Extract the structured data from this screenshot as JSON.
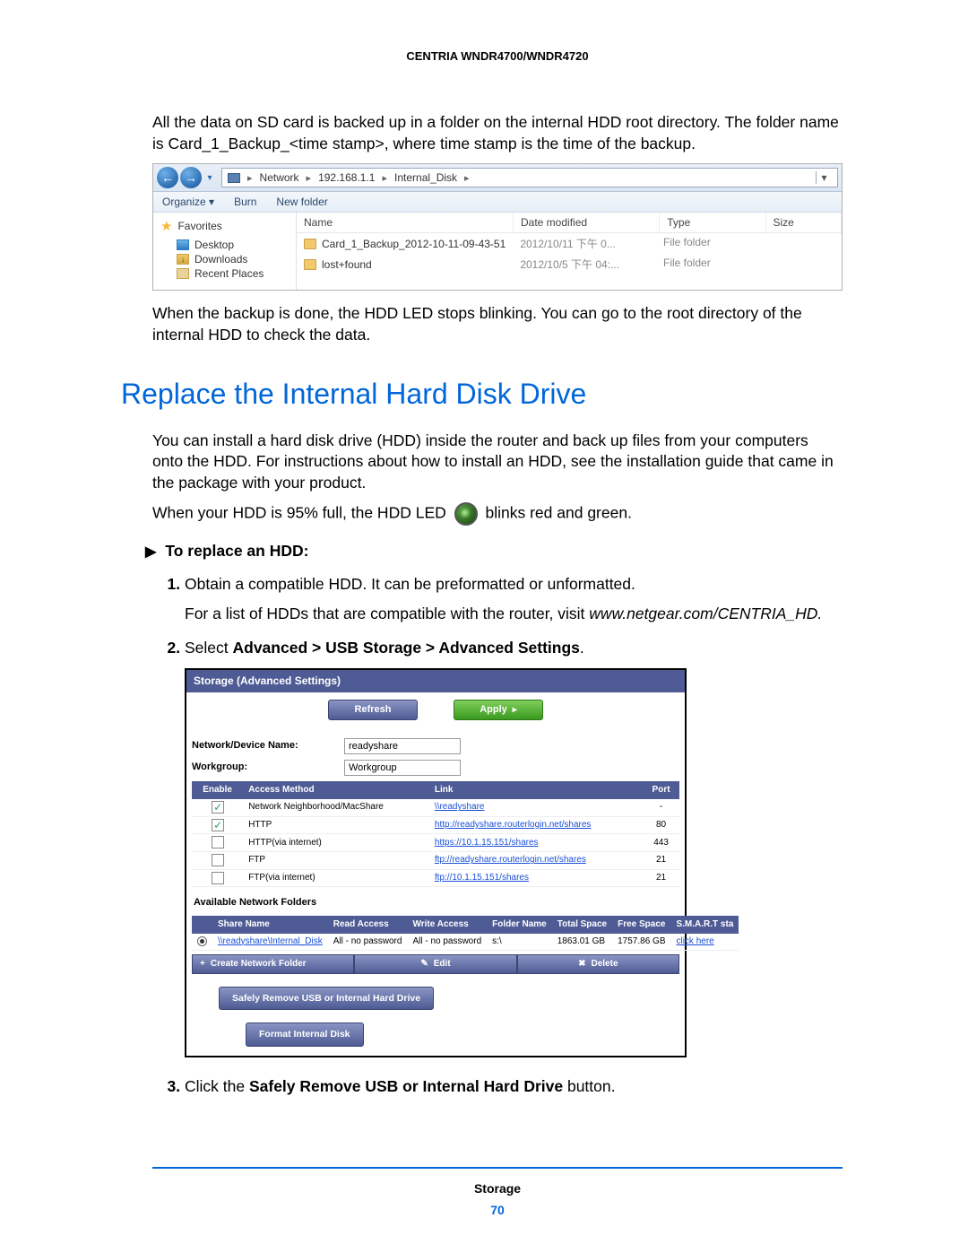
{
  "header": {
    "product": "CENTRIA WNDR4700/WNDR4720"
  },
  "intro": {
    "p1": "All the data on SD card is backed up in a folder on the internal HDD root directory. The folder name is Card_1_Backup_<time stamp>, where time stamp is the time of the backup.",
    "p2": "When the backup is done, the HDD LED stops blinking. You can go to the root directory of the internal HDD to check the data."
  },
  "explorer": {
    "toolbar": {
      "organize": "Organize ▾",
      "burn": "Burn",
      "newfolder": "New folder"
    },
    "breadcrumbs": [
      "Network",
      "192.168.1.1",
      "Internal_Disk"
    ],
    "sidebar": {
      "favorites": "Favorites",
      "items": [
        "Desktop",
        "Downloads",
        "Recent Places"
      ]
    },
    "columns": {
      "name": "Name",
      "date": "Date modified",
      "type": "Type",
      "size": "Size"
    },
    "rows": [
      {
        "name": "Card_1_Backup_2012-10-11-09-43-51",
        "date": "2012/10/11 下午 0...",
        "type": "File folder",
        "size": ""
      },
      {
        "name": "lost+found",
        "date": "2012/10/5 下午 04:...",
        "type": "File folder",
        "size": ""
      }
    ]
  },
  "section": {
    "title": "Replace the Internal Hard Disk Drive",
    "desc": "You can install a hard disk drive (HDD) inside the router and back up files from your computers onto the HDD. For instructions about how to install an HDD, see the installation guide that came in the package with your product.",
    "led_before": "When your HDD is 95% full, the HDD LED",
    "led_after": "blinks red and green.",
    "task": "To replace an HDD:",
    "step1a": "Obtain a compatible HDD. It can be preformatted or unformatted.",
    "step1b": "For a list of HDDs that are compatible with the router, visit ",
    "step1c": "www.netgear.com/CENTRIA_HD.",
    "step2_pre": "Select ",
    "step2_bold": "Advanced > USB Storage > Advanced Settings",
    "step3_pre": "Click the ",
    "step3_bold": "Safely Remove USB or Internal Hard Drive",
    "step3_post": " button."
  },
  "router": {
    "title": "Storage (Advanced Settings)",
    "buttons": {
      "refresh": "Refresh",
      "apply": "Apply"
    },
    "form": {
      "device_label": "Network/Device Name:",
      "device_value": "readyshare",
      "workgroup_label": "Workgroup:",
      "workgroup_value": "Workgroup"
    },
    "access_cols": {
      "enable": "Enable",
      "method": "Access Method",
      "link": "Link",
      "port": "Port"
    },
    "access": [
      {
        "on": true,
        "method": "Network Neighborhood/MacShare",
        "link": "\\\\readyshare",
        "port": "-"
      },
      {
        "on": true,
        "method": "HTTP",
        "link": "http://readyshare.routerlogin.net/shares",
        "port": "80"
      },
      {
        "on": false,
        "method": "HTTP(via internet)",
        "link": "https://10.1.15.151/shares",
        "port": "443"
      },
      {
        "on": false,
        "method": "FTP",
        "link": "ftp://readyshare.routerlogin.net/shares",
        "port": "21"
      },
      {
        "on": false,
        "method": "FTP(via internet)",
        "link": "ftp://10.1.15.151/shares",
        "port": "21"
      }
    ],
    "shares_label": "Available Network Folders",
    "shares_cols": {
      "share": "Share Name",
      "read": "Read Access",
      "write": "Write Access",
      "folder": "Folder Name",
      "total": "Total Space",
      "free": "Free Space",
      "smart": "S.M.A.R.T sta"
    },
    "share_row": {
      "name": "\\\\readyshare\\Internal_Disk",
      "read": "All - no password",
      "write": "All - no password",
      "folder": "s:\\",
      "total": "1863.01 GB",
      "free": "1757.86 GB",
      "smart": "click here"
    },
    "actions": {
      "create": "Create Network Folder",
      "edit": "Edit",
      "delete": "Delete"
    },
    "chips": {
      "safely": "Safely Remove USB or Internal Hard Drive",
      "format": "Format Internal Disk"
    }
  },
  "footer": {
    "section": "Storage",
    "page": "70"
  }
}
